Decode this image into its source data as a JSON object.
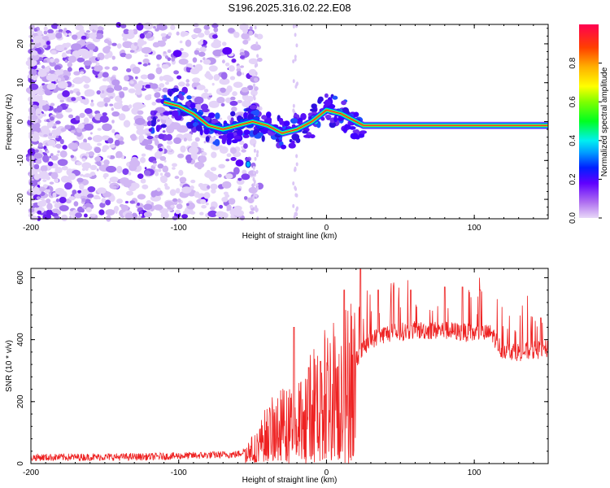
{
  "title": "S196.2025.316.02.22.E08",
  "chart_data": [
    {
      "type": "heatmap",
      "name": "spectrogram",
      "xlabel": "Height of straight line (km)",
      "ylabel": "Frequency (Hz)",
      "xlim": [
        -200,
        150
      ],
      "ylim": [
        -25,
        25
      ],
      "xticks": [
        -200,
        -100,
        0,
        100
      ],
      "yticks": [
        -20,
        -10,
        0,
        10,
        20
      ],
      "colorbar": {
        "label": "Normalized spectral amplitude",
        "range": [
          0,
          1
        ],
        "ticks": [
          0.0,
          0.2,
          0.4,
          0.6,
          0.8
        ],
        "tick_labels": [
          "0.0",
          "0.2",
          "0.4",
          "0.6",
          "0.8"
        ]
      },
      "ridge": [
        [
          -110,
          5
        ],
        [
          -100,
          4
        ],
        [
          -90,
          2
        ],
        [
          -80,
          -1
        ],
        [
          -70,
          -2
        ],
        [
          -60,
          -1
        ],
        [
          -50,
          0
        ],
        [
          -40,
          -1
        ],
        [
          -30,
          -3
        ],
        [
          -20,
          -2
        ],
        [
          -10,
          0
        ],
        [
          0,
          3
        ],
        [
          10,
          2
        ],
        [
          20,
          0
        ],
        [
          25,
          -1
        ],
        [
          150,
          -1
        ]
      ]
    },
    {
      "type": "line",
      "name": "snr",
      "xlabel": "Height of straight line (km)",
      "ylabel": "SNR (10 * v/v)",
      "xlim": [
        -200,
        150
      ],
      "ylim": [
        0,
        630
      ],
      "xticks": [
        -200,
        -100,
        0,
        100
      ],
      "yticks": [
        0,
        200,
        400,
        600
      ],
      "color": "#ee2222",
      "envelope": [
        [
          -200,
          20
        ],
        [
          -120,
          22
        ],
        [
          -60,
          30
        ],
        [
          -48,
          60
        ],
        [
          -40,
          120
        ],
        [
          -30,
          150
        ],
        [
          -22,
          150
        ],
        [
          -15,
          190
        ],
        [
          -8,
          240
        ],
        [
          0,
          280
        ],
        [
          10,
          300
        ],
        [
          20,
          340
        ],
        [
          30,
          400
        ],
        [
          40,
          420
        ],
        [
          60,
          430
        ],
        [
          80,
          430
        ],
        [
          100,
          420
        ],
        [
          112,
          420
        ],
        [
          118,
          370
        ],
        [
          130,
          360
        ],
        [
          150,
          370
        ]
      ],
      "peaks": [
        [
          -22,
          440
        ],
        [
          -12,
          310
        ],
        [
          -4,
          330
        ],
        [
          12,
          560
        ],
        [
          23,
          640
        ],
        [
          35,
          560
        ],
        [
          57,
          560
        ],
        [
          80,
          570
        ],
        [
          92,
          570
        ],
        [
          104,
          560
        ],
        [
          145,
          470
        ]
      ]
    }
  ]
}
